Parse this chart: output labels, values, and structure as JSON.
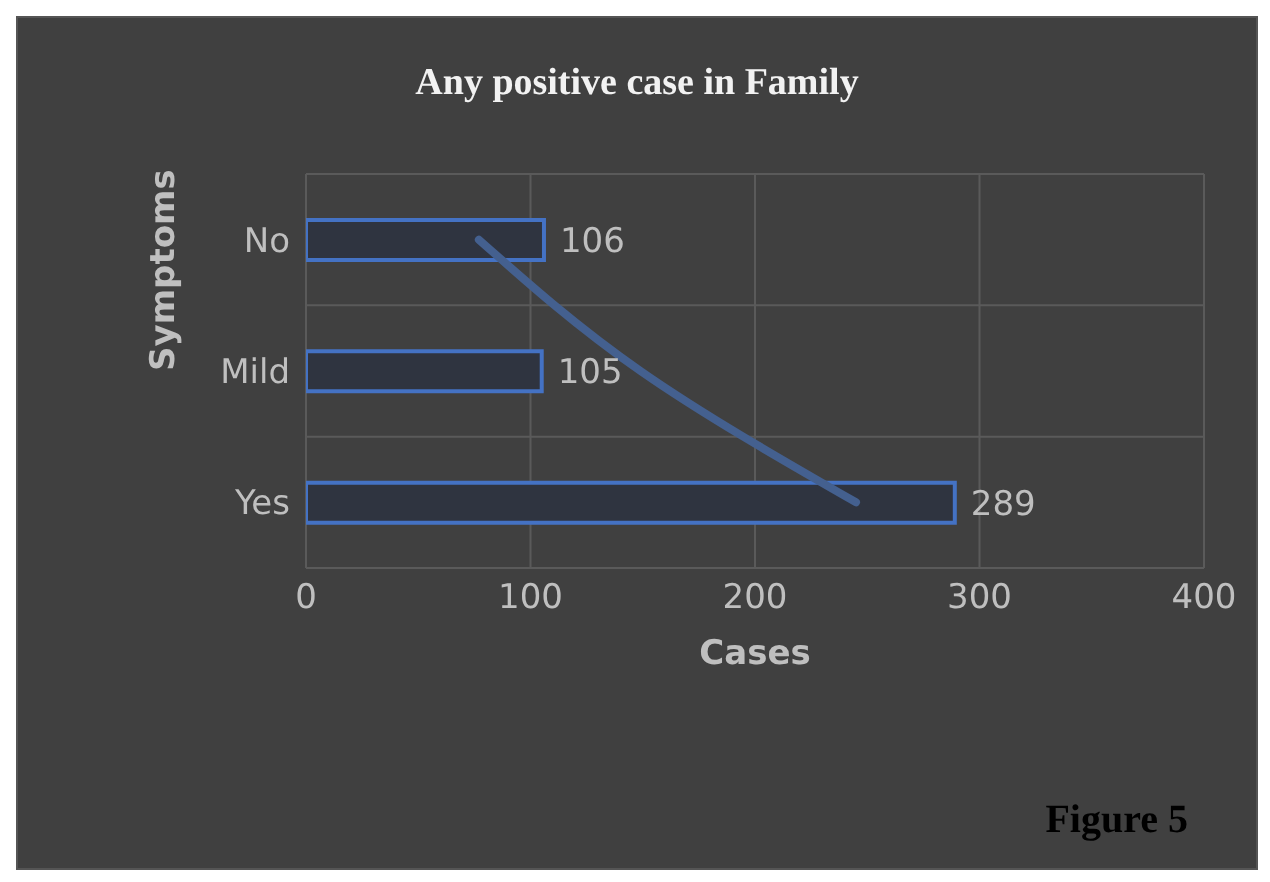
{
  "chart_data": {
    "type": "bar",
    "orientation": "horizontal",
    "title": "Any positive case in Family",
    "xlabel": "Cases",
    "ylabel": "Symptoms",
    "categories": [
      "No",
      "Mild",
      "Yes"
    ],
    "series": [
      {
        "color": "#4472c4",
        "values": [
          106,
          105,
          289
        ],
        "value_labels": [
          "106",
          "105",
          "289"
        ]
      },
      {
        "type": "line",
        "color": "#44608f",
        "values": [
          77,
          149,
          245
        ]
      }
    ],
    "xlim": [
      0,
      400
    ],
    "xticks": [
      0,
      100,
      200,
      300,
      400
    ],
    "grid": true,
    "annotations": [
      "Figure 5"
    ]
  }
}
